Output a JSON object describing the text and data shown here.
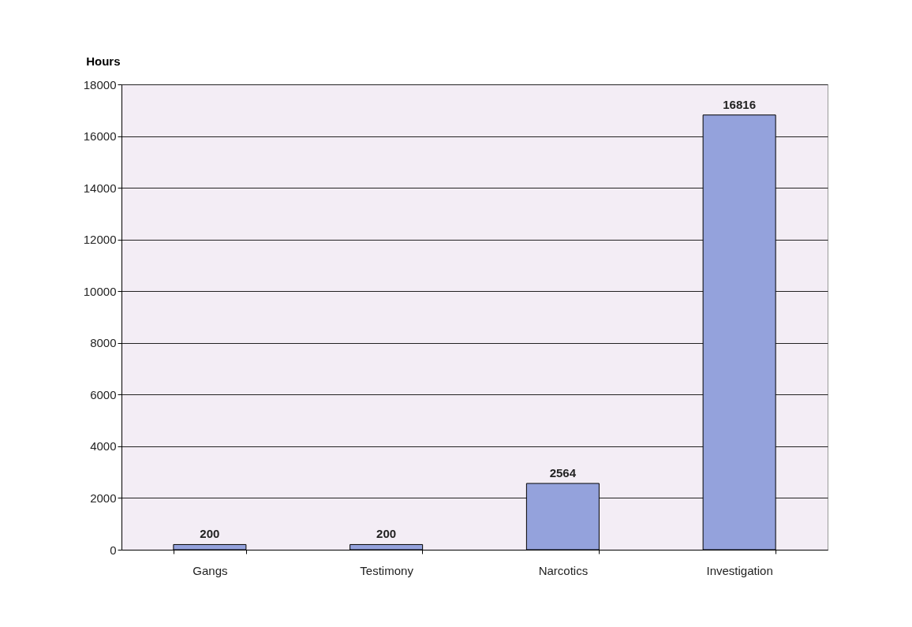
{
  "chart_data": {
    "type": "bar",
    "categories": [
      "Gangs",
      "Testimony",
      "Narcotics",
      "Investigation"
    ],
    "values": [
      200,
      200,
      2564,
      16816
    ],
    "color": "#94a2dc",
    "ylabel": "Hours",
    "ylim": [
      0,
      18000
    ],
    "yticks": [
      0,
      2000,
      4000,
      6000,
      8000,
      10000,
      12000,
      14000,
      16000,
      18000
    ],
    "grid": "y",
    "data_labels": true
  }
}
